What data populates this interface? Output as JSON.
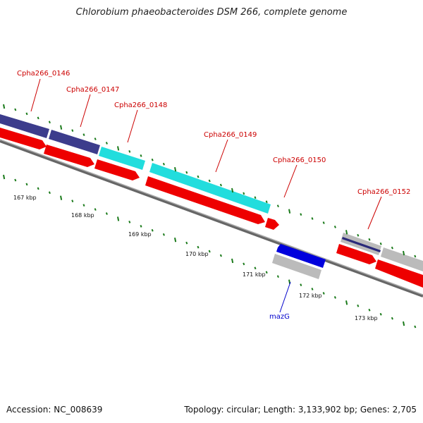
{
  "title": "Chlorobium phaeobacteroides DSM 266, complete genome",
  "footer": {
    "accession": "Accession: NC_008639",
    "topology": "Topology: circular; Length: 3,133,902 bp; Genes: 2,705"
  },
  "colors": {
    "red_label": "#cc0000",
    "blue_label": "#0000cc",
    "tick": "#1a7a1a",
    "backbone": "#777777",
    "dark_purple": "#3c3c8c",
    "cyan": "#22dddd",
    "red": "#ee0000",
    "blue": "#0000dd",
    "gray": "#bbbbbb"
  },
  "scale_labels": [
    "167 kbp",
    "168 kbp",
    "169 kbp",
    "170 kbp",
    "171 kbp",
    "172 kbp",
    "173 kbp"
  ],
  "gene_labels": [
    {
      "name": "Cpha266_0146",
      "color": "red"
    },
    {
      "name": "Cpha266_0147",
      "color": "red"
    },
    {
      "name": "Cpha266_0148",
      "color": "red"
    },
    {
      "name": "Cpha266_0149",
      "color": "red"
    },
    {
      "name": "Cpha266_0150",
      "color": "red"
    },
    {
      "name": "Cpha266_0152",
      "color": "red"
    },
    {
      "name": "mazG",
      "color": "blue"
    }
  ]
}
